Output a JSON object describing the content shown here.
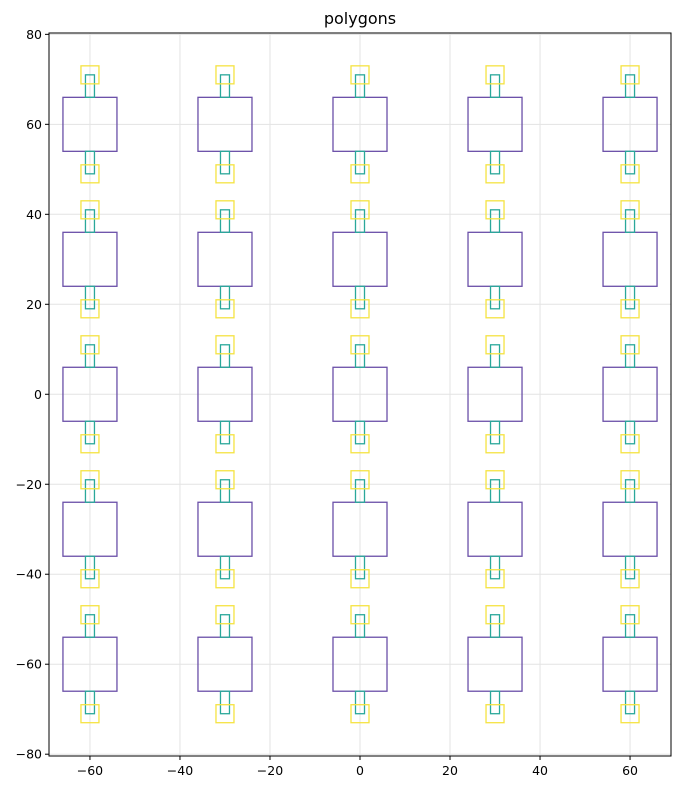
{
  "chart_data": {
    "type": "polygons",
    "title": "polygons",
    "xlabel": "",
    "ylabel": "",
    "xlim": [
      -69.1,
      69.1
    ],
    "ylim": [
      -80.4,
      80.3
    ],
    "xticks": [
      -60,
      -40,
      -20,
      0,
      20,
      40,
      60
    ],
    "yticks": [
      -80,
      -60,
      -40,
      -20,
      0,
      20,
      40,
      60,
      80
    ],
    "grid": true,
    "grid_centers_x": [
      -60,
      -30,
      0,
      30,
      60
    ],
    "grid_centers_y": [
      -60,
      -30,
      0,
      30,
      60
    ],
    "shapes_relative_to_center": [
      {
        "role": "body",
        "color": "#6a4fa8",
        "rect": [
          -6,
          -6,
          6,
          6
        ]
      },
      {
        "role": "top-stem",
        "color": "#2aa89a",
        "rect": [
          -1,
          6,
          1,
          11
        ]
      },
      {
        "role": "bottom-stem",
        "color": "#2aa89a",
        "rect": [
          -1,
          -11,
          1,
          -6
        ]
      },
      {
        "role": "top-cap",
        "color": "#f5e342",
        "rect": [
          -2,
          9,
          2,
          13
        ]
      },
      {
        "role": "bottom-cap",
        "color": "#f5e342",
        "rect": [
          -2,
          -13,
          2,
          -9
        ]
      }
    ]
  }
}
